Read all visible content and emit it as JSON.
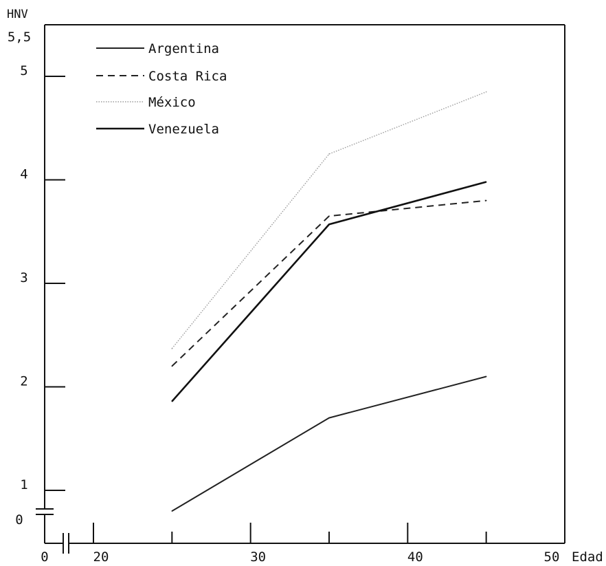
{
  "chart_data": {
    "type": "line",
    "title": "",
    "xlabel": "Edad",
    "ylabel": "HNV",
    "x": [
      25,
      35,
      45
    ],
    "xlim": [
      15,
      50
    ],
    "ylim": [
      0.5,
      5.5
    ],
    "x_break": true,
    "y_break": true,
    "x_ticks": [
      20,
      30,
      40,
      50
    ],
    "x_tick_labels": [
      "20",
      "30",
      "40",
      "50"
    ],
    "x_origin_label": "0",
    "y_ticks": [
      1,
      2,
      3,
      4,
      5,
      5.5
    ],
    "y_tick_labels": [
      "1",
      "2",
      "3",
      "4",
      "5",
      "5,5"
    ],
    "y_origin_label": "0",
    "grid": false,
    "legend_position": "top-left",
    "series": [
      {
        "name": "Argentina",
        "values": [
          0.8,
          1.7,
          2.1
        ],
        "style": "solid",
        "color": "#222222"
      },
      {
        "name": "Costa Rica",
        "values": [
          2.2,
          3.65,
          3.8
        ],
        "style": "dashed",
        "color": "#222222"
      },
      {
        "name": "México",
        "values": [
          2.37,
          4.25,
          4.85
        ],
        "style": "dotted",
        "color": "#9a9a9a"
      },
      {
        "name": "Venezuela",
        "values": [
          1.86,
          3.57,
          3.98
        ],
        "style": "solid",
        "color": "#111111"
      }
    ]
  }
}
